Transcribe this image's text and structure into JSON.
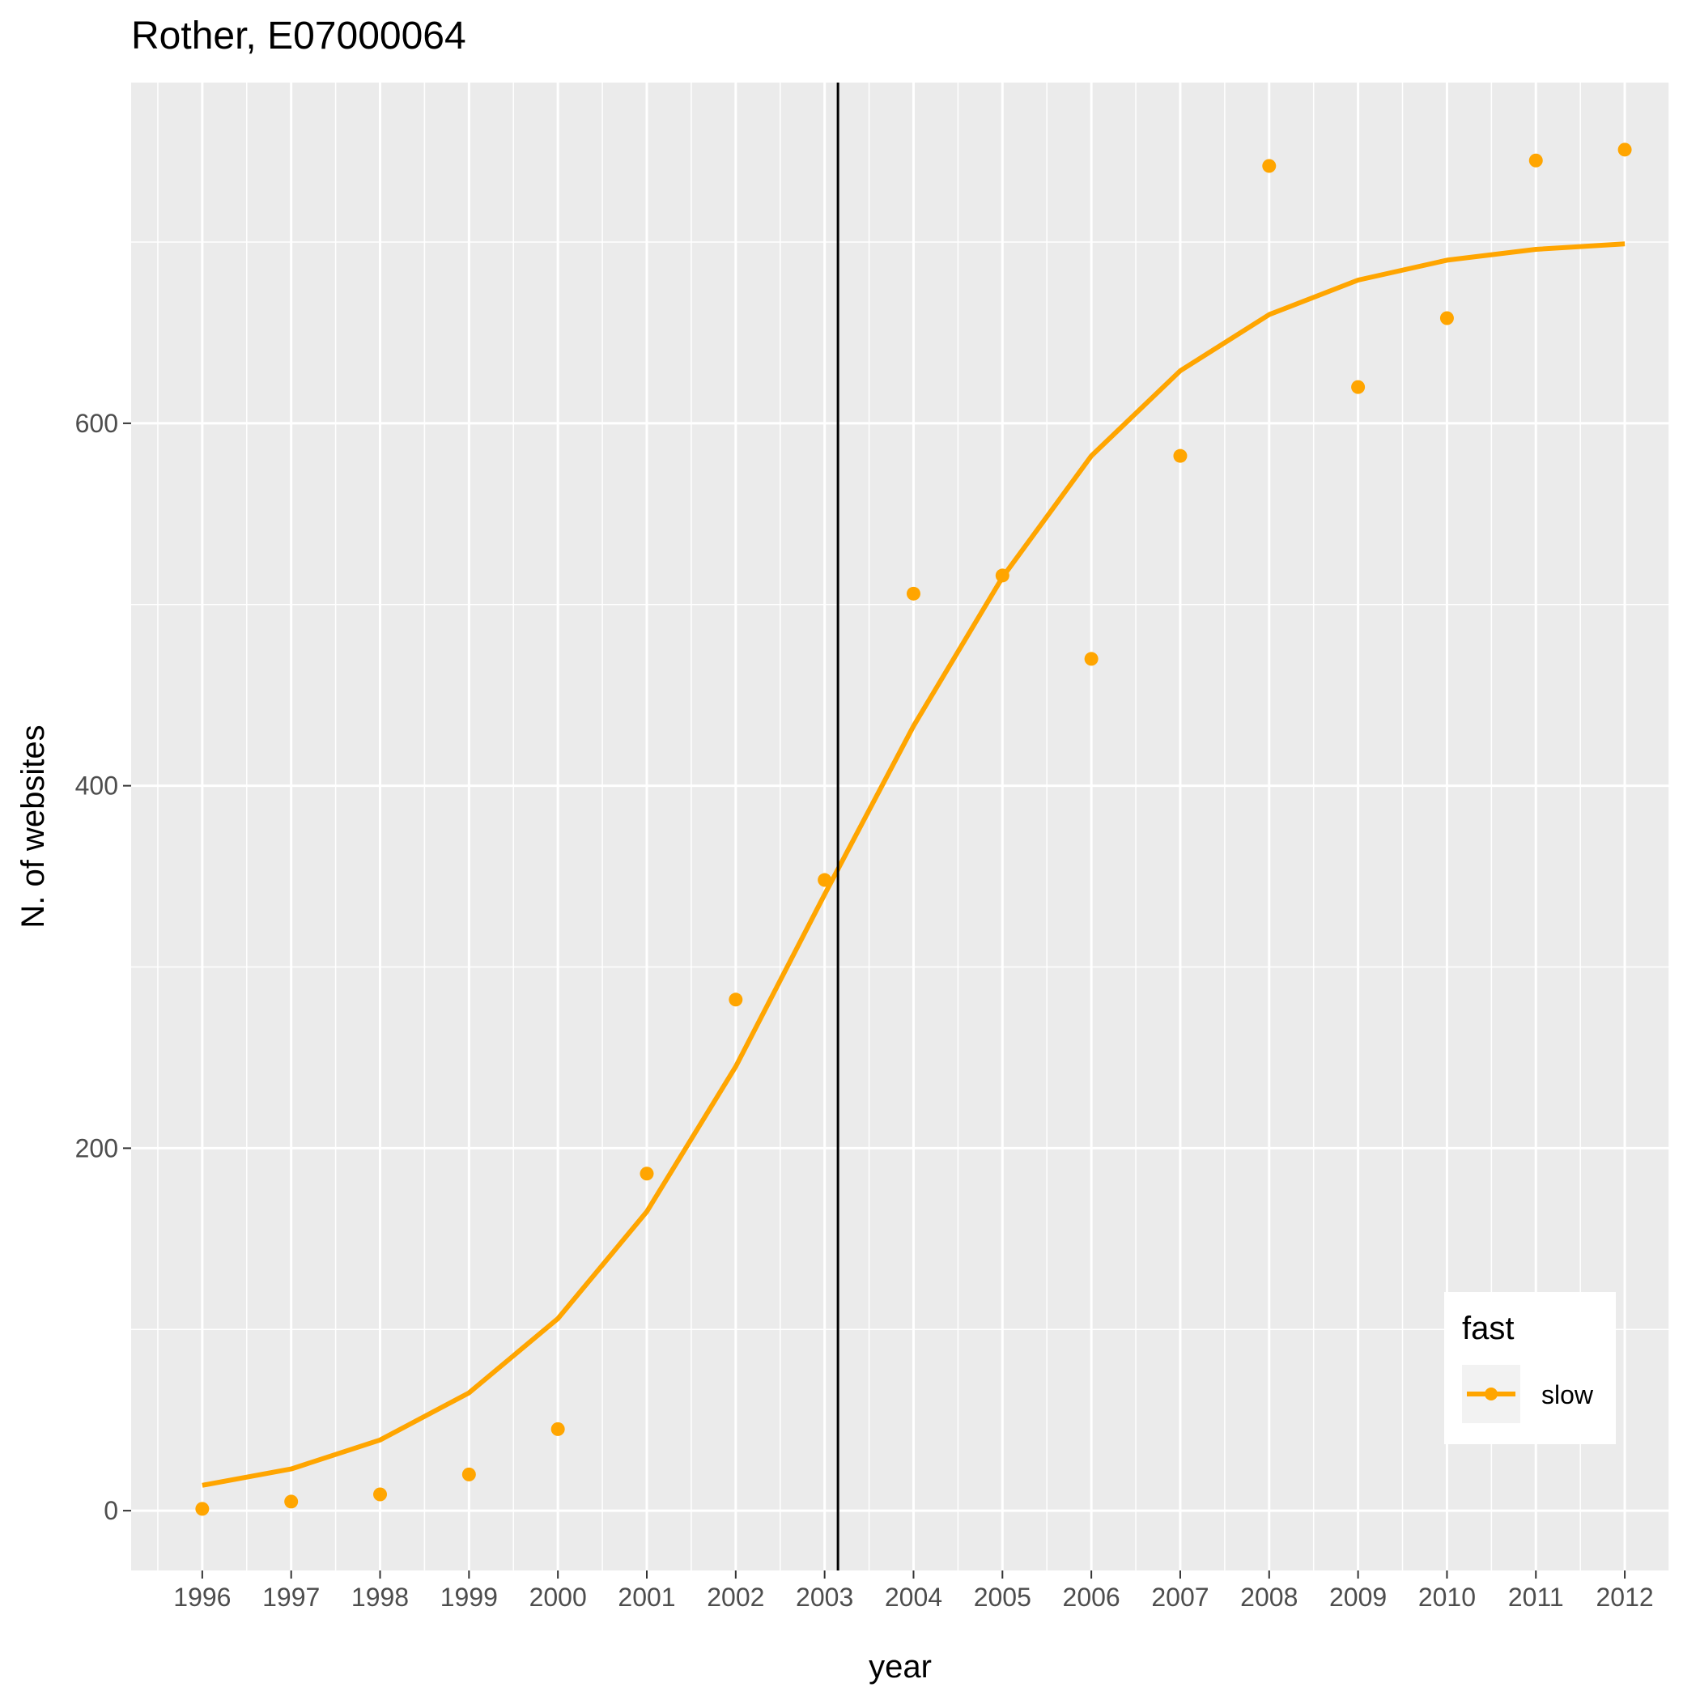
{
  "chart_data": {
    "type": "line",
    "title": "Rother, E07000064",
    "xlabel": "year",
    "ylabel": "N. of websites",
    "x": [
      1996,
      1997,
      1998,
      1999,
      2000,
      2001,
      2002,
      2003,
      2004,
      2005,
      2006,
      2007,
      2008,
      2009,
      2010,
      2011,
      2012
    ],
    "x_tick_labels": [
      "1996",
      "1997",
      "1998",
      "1999",
      "2000",
      "2001",
      "2002",
      "2003",
      "2004",
      "2005",
      "2006",
      "2007",
      "2008",
      "2009",
      "2010",
      "2011",
      "2012"
    ],
    "y_ticks": [
      0,
      200,
      400,
      600
    ],
    "y_tick_labels": [
      "0",
      "200",
      "400",
      "600"
    ],
    "xlim": [
      1995.2,
      2012.5
    ],
    "ylim": [
      -33,
      788
    ],
    "grid": true,
    "vertical_line_x": 2003.15,
    "series": [
      {
        "name": "slow",
        "color": "#FFA500",
        "points": [
          1,
          5,
          9,
          20,
          45,
          186,
          282,
          348,
          506,
          516,
          470,
          582,
          742,
          620,
          658,
          745,
          751
        ],
        "fitted_line": [
          14,
          23,
          39,
          65,
          106,
          165,
          245,
          340,
          433,
          515,
          582,
          629,
          660,
          679,
          690,
          696,
          699
        ]
      }
    ],
    "legend": {
      "title": "fast",
      "position": "bottom-right",
      "entries": [
        "slow"
      ]
    }
  }
}
